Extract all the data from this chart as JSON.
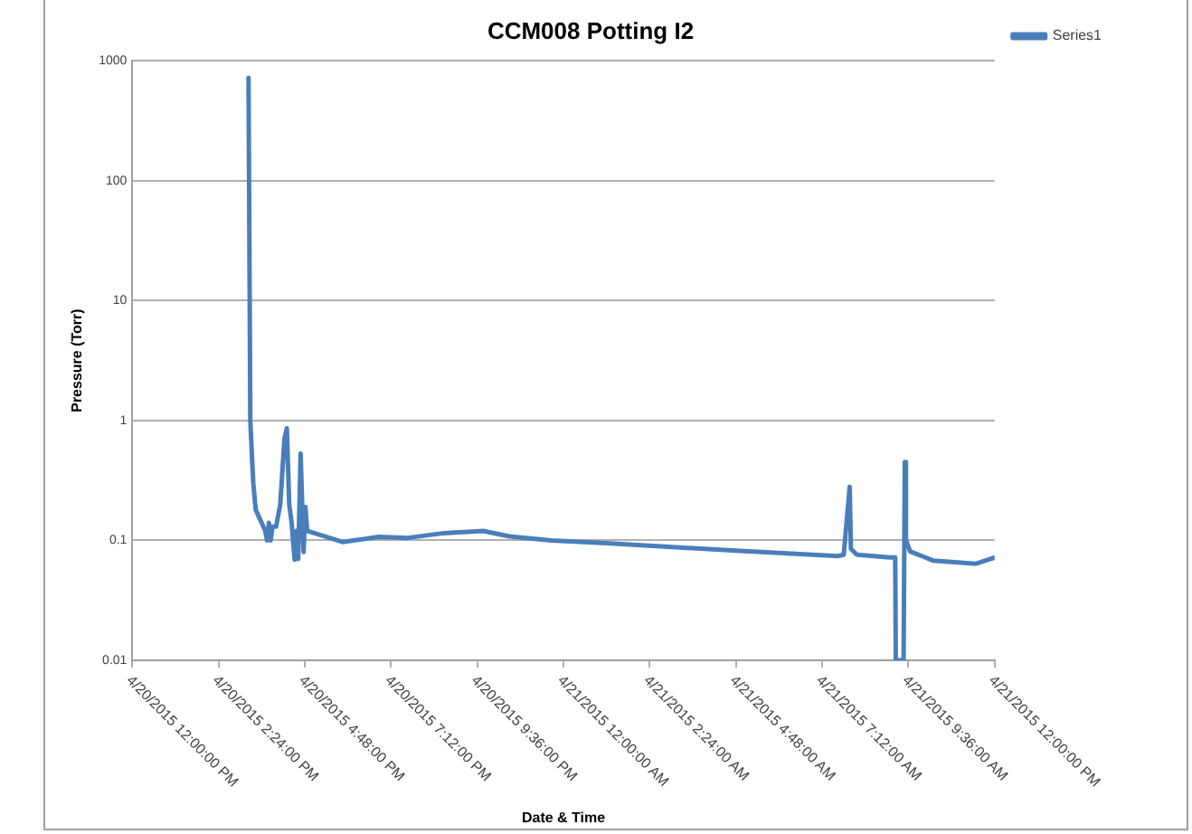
{
  "chart_data": {
    "type": "line",
    "title": "CCM008 Potting I2",
    "xlabel": "Date & Time",
    "ylabel": "Pressure (Torr)",
    "x": [
      "2015-04-20T15:14",
      "2015-04-20T15:17",
      "2015-04-20T15:20",
      "2015-04-20T15:22",
      "2015-04-20T15:26",
      "2015-04-20T15:36",
      "2015-04-20T15:42",
      "2015-04-20T15:45",
      "2015-04-20T15:48",
      "2015-04-20T15:51",
      "2015-04-20T15:54",
      "2015-04-20T16:00",
      "2015-04-20T16:07",
      "2015-04-20T16:14",
      "2015-04-20T16:18",
      "2015-04-20T16:22",
      "2015-04-20T16:26",
      "2015-04-20T16:31",
      "2015-04-20T16:34",
      "2015-04-20T16:37",
      "2015-04-20T16:41",
      "2015-04-20T16:46",
      "2015-04-20T16:49",
      "2015-04-20T16:52",
      "2015-04-20T17:04",
      "2015-04-20T17:51",
      "2015-04-20T18:52",
      "2015-04-20T19:40",
      "2015-04-20T20:40",
      "2015-04-20T21:46",
      "2015-04-20T22:30",
      "2015-04-20T23:40",
      "2015-04-21T01:12",
      "2015-04-21T04:48",
      "2015-04-21T07:38",
      "2015-04-21T07:48",
      "2015-04-21T07:58",
      "2015-04-21T08:00",
      "2015-04-21T08:10",
      "2015-04-21T09:05",
      "2015-04-21T09:14",
      "2015-04-21T09:15",
      "2015-04-21T09:28",
      "2015-04-21T09:30",
      "2015-04-21T09:32",
      "2015-04-21T09:39",
      "2015-04-21T10:17",
      "2015-04-21T11:29",
      "2015-04-21T12:00"
    ],
    "series": [
      {
        "name": "Series1",
        "color": "#4a7ebb",
        "values": [
          720,
          1.0,
          0.47,
          0.3,
          0.18,
          0.14,
          0.12,
          0.1,
          0.14,
          0.1,
          0.13,
          0.13,
          0.2,
          0.7,
          0.86,
          0.2,
          0.14,
          0.069,
          0.12,
          0.07,
          0.53,
          0.08,
          0.19,
          0.12,
          0.115,
          0.097,
          0.107,
          0.105,
          0.115,
          0.12,
          0.108,
          0.1,
          0.095,
          0.082,
          0.074,
          0.076,
          0.28,
          0.085,
          0.076,
          0.072,
          0.072,
          0.01,
          0.01,
          0.45,
          0.1,
          0.081,
          0.068,
          0.064,
          0.072
        ]
      }
    ],
    "log": "y",
    "ylim": [
      0.01,
      1000
    ],
    "yticks": [
      0.01,
      0.1,
      1,
      10,
      100,
      1000
    ],
    "xlim": [
      "2015-04-20T12:00",
      "2015-04-21T12:00"
    ],
    "xticks": [
      {
        "value": "2015-04-20T12:00",
        "label": "4/20/2015 12:00:00 PM"
      },
      {
        "value": "2015-04-20T14:24",
        "label": "4/20/2015 2:24:00 PM"
      },
      {
        "value": "2015-04-20T16:48",
        "label": "4/20/2015 4:48:00 PM"
      },
      {
        "value": "2015-04-20T19:12",
        "label": "4/20/2015 7:12:00 PM"
      },
      {
        "value": "2015-04-20T21:36",
        "label": "4/20/2015 9:36:00 PM"
      },
      {
        "value": "2015-04-21T00:00",
        "label": "4/21/2015 12:00:00 AM"
      },
      {
        "value": "2015-04-21T02:24",
        "label": "4/21/2015 2:24:00 AM"
      },
      {
        "value": "2015-04-21T04:48",
        "label": "4/21/2015 4:48:00 AM"
      },
      {
        "value": "2015-04-21T07:12",
        "label": "4/21/2015 7:12:00 AM"
      },
      {
        "value": "2015-04-21T09:36",
        "label": "4/21/2015 9:36:00 AM"
      },
      {
        "value": "2015-04-21T12:00",
        "label": "4/21/2015 12:00:00 PM"
      }
    ],
    "grid": "y",
    "legend": "right",
    "marker": "none",
    "line_style": "solid"
  }
}
